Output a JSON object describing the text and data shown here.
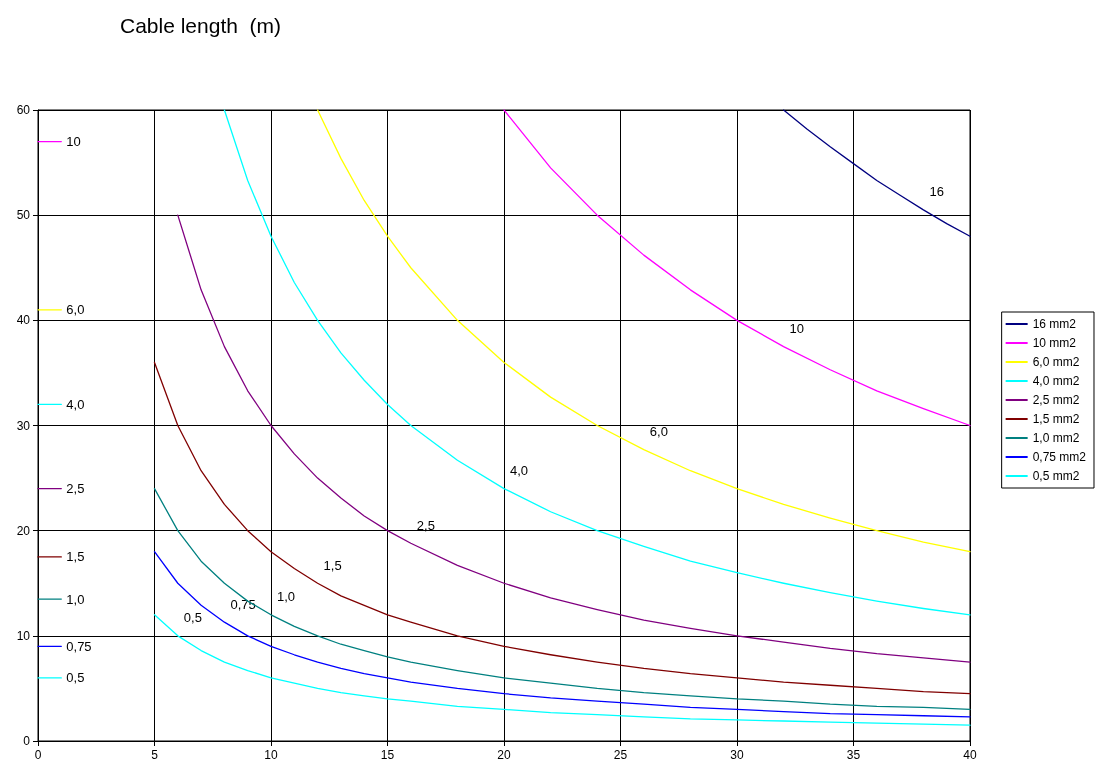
{
  "chart_data": {
    "type": "line",
    "title": "Cable length  (m)",
    "xlim": [
      0,
      40
    ],
    "ylim": [
      0,
      60
    ],
    "xticks": [
      0,
      5,
      10,
      15,
      20,
      25,
      30,
      35,
      40
    ],
    "yticks": [
      0,
      10,
      20,
      30,
      40,
      50,
      60
    ],
    "grid": true,
    "legend": "right",
    "marker": "none",
    "line_style": "solid",
    "series": [
      {
        "name": "16 mm2",
        "color": "#000080",
        "x": [
          32,
          33,
          34,
          35,
          36,
          37,
          38,
          39,
          40
        ],
        "values": [
          60,
          58.2,
          56.5,
          54.9,
          53.3,
          51.9,
          50.5,
          49.2,
          48
        ]
      },
      {
        "name": "10 mm2",
        "color": "#ff00ff",
        "x": [
          20,
          22,
          24,
          26,
          28,
          30,
          32,
          34,
          36,
          38,
          40
        ],
        "values": [
          60,
          54.5,
          50,
          46.2,
          42.9,
          40,
          37.5,
          35.3,
          33.3,
          31.6,
          30
        ]
      },
      {
        "name": "6,0 mm2",
        "color": "#ffff00",
        "x": [
          12,
          13,
          14,
          15,
          16,
          18,
          20,
          22,
          24,
          26,
          28,
          30,
          32,
          34,
          36,
          38,
          40
        ],
        "values": [
          60,
          55.4,
          51.4,
          48,
          45,
          40,
          36,
          32.7,
          30,
          27.7,
          25.7,
          24,
          22.5,
          21.2,
          20,
          18.9,
          18
        ]
      },
      {
        "name": "4,0 mm2",
        "color": "#00ffff",
        "x": [
          8,
          9,
          10,
          11,
          12,
          13,
          14,
          15,
          16,
          18,
          20,
          22,
          24,
          26,
          28,
          30,
          32,
          34,
          36,
          38,
          40
        ],
        "values": [
          60,
          53.3,
          48,
          43.6,
          40,
          36.9,
          34.3,
          32,
          30,
          26.7,
          24,
          21.8,
          20,
          18.5,
          17.1,
          16,
          15,
          14.1,
          13.3,
          12.6,
          12
        ]
      },
      {
        "name": "2,5 mm2",
        "color": "#800080",
        "x": [
          6,
          7,
          8,
          9,
          10,
          11,
          12,
          13,
          14,
          15,
          16,
          18,
          20,
          22,
          24,
          26,
          28,
          30,
          32,
          34,
          36,
          38,
          40
        ],
        "values": [
          50,
          42.9,
          37.5,
          33.3,
          30,
          27.3,
          25,
          23.1,
          21.4,
          20,
          18.8,
          16.7,
          15,
          13.6,
          12.5,
          11.5,
          10.7,
          10,
          9.4,
          8.8,
          8.3,
          7.9,
          7.5
        ]
      },
      {
        "name": "1,5 mm2",
        "color": "#800000",
        "x": [
          5,
          6,
          7,
          8,
          9,
          10,
          11,
          12,
          13,
          14,
          15,
          16,
          18,
          20,
          22,
          24,
          26,
          28,
          30,
          32,
          34,
          36,
          38,
          40
        ],
        "values": [
          36,
          30,
          25.7,
          22.5,
          20,
          18,
          16.4,
          15,
          13.8,
          12.9,
          12,
          11.3,
          10,
          9,
          8.2,
          7.5,
          6.9,
          6.4,
          6,
          5.6,
          5.3,
          5,
          4.7,
          4.5
        ]
      },
      {
        "name": "1,0 mm2",
        "color": "#008080",
        "x": [
          5,
          6,
          7,
          8,
          9,
          10,
          11,
          12,
          13,
          14,
          15,
          16,
          18,
          20,
          22,
          24,
          26,
          28,
          30,
          32,
          34,
          36,
          38,
          40
        ],
        "values": [
          24,
          20,
          17.1,
          15,
          13.3,
          12,
          10.9,
          10,
          9.2,
          8.6,
          8,
          7.5,
          6.7,
          6,
          5.5,
          5,
          4.6,
          4.3,
          4,
          3.8,
          3.5,
          3.3,
          3.2,
          3
        ]
      },
      {
        "name": "0,75 mm2",
        "color": "#0000ff",
        "x": [
          5,
          6,
          7,
          8,
          9,
          10,
          11,
          12,
          13,
          14,
          15,
          16,
          18,
          20,
          22,
          24,
          26,
          28,
          30,
          32,
          34,
          36,
          38,
          40
        ],
        "values": [
          18,
          15,
          12.9,
          11.3,
          10,
          9,
          8.2,
          7.5,
          6.9,
          6.4,
          6,
          5.6,
          5,
          4.5,
          4.1,
          3.8,
          3.5,
          3.2,
          3,
          2.8,
          2.6,
          2.5,
          2.4,
          2.3
        ]
      },
      {
        "name": "0,5 mm2",
        "color": "#00ffff",
        "x": [
          5,
          6,
          7,
          8,
          9,
          10,
          11,
          12,
          13,
          14,
          15,
          16,
          18,
          20,
          22,
          24,
          26,
          28,
          30,
          32,
          34,
          36,
          38,
          40
        ],
        "values": [
          12,
          10,
          8.6,
          7.5,
          6.7,
          6,
          5.5,
          5,
          4.6,
          4.3,
          4,
          3.8,
          3.3,
          3,
          2.7,
          2.5,
          2.3,
          2.1,
          2,
          1.9,
          1.8,
          1.7,
          1.6,
          1.5
        ]
      },
      {
        "color": "#ff00ff",
        "x": [
          0,
          1
        ],
        "values": [
          57,
          57
        ]
      },
      {
        "color": "#ffff00",
        "x": [
          0,
          1
        ],
        "values": [
          41,
          41
        ]
      },
      {
        "color": "#00ffff",
        "x": [
          0,
          1
        ],
        "values": [
          32,
          32
        ]
      },
      {
        "color": "#800080",
        "x": [
          0,
          1
        ],
        "values": [
          24,
          24
        ]
      },
      {
        "color": "#800000",
        "x": [
          0,
          1
        ],
        "values": [
          17.5,
          17.5
        ]
      },
      {
        "color": "#008080",
        "x": [
          0,
          1
        ],
        "values": [
          13.5,
          13.5
        ]
      },
      {
        "color": "#0000ff",
        "x": [
          0,
          1
        ],
        "values": [
          9,
          9
        ]
      },
      {
        "color": "#00ffff",
        "x": [
          0,
          1
        ],
        "values": [
          6,
          6
        ]
      }
    ],
    "annotations": [
      {
        "text": "16",
        "x": 38,
        "y": 50.5
      },
      {
        "text": "10",
        "x": 32,
        "y": 37.5
      },
      {
        "text": "6,0",
        "x": 26,
        "y": 27.7
      },
      {
        "text": "4,0",
        "x": 20,
        "y": 24
      },
      {
        "text": "2,5",
        "x": 16,
        "y": 18.8
      },
      {
        "text": "1,5",
        "x": 12,
        "y": 15
      },
      {
        "text": "1,0",
        "x": 10,
        "y": 12
      },
      {
        "text": "0,75",
        "x": 8,
        "y": 11.3
      },
      {
        "text": "0,5",
        "x": 6,
        "y": 10
      },
      {
        "text": "10",
        "x": 1,
        "y": 57
      },
      {
        "text": "6,0",
        "x": 1,
        "y": 41
      },
      {
        "text": "4,0",
        "x": 1,
        "y": 32
      },
      {
        "text": "2,5",
        "x": 1,
        "y": 24
      },
      {
        "text": "1,5",
        "x": 1,
        "y": 17.5
      },
      {
        "text": "1,0",
        "x": 1,
        "y": 13.5
      },
      {
        "text": "0,75",
        "x": 1,
        "y": 9
      },
      {
        "text": "0,5",
        "x": 1,
        "y": 6
      }
    ]
  }
}
